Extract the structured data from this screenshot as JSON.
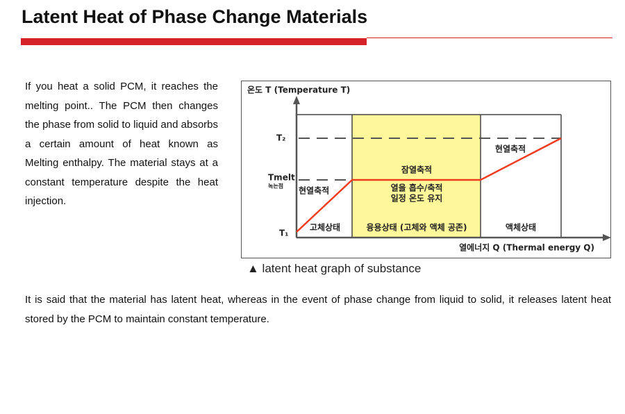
{
  "header": {
    "title": "Latent Heat of Phase Change Materials"
  },
  "intro": "If you heat a solid PCM, it reaches the melting point.. The PCM then changes the phase from solid to liquid and absorbs a certain amount of heat known as Melting enthalpy. The material stays at a constant temperature despite the heat injection.",
  "figure": {
    "y_axis_label": "온도 T (Temperature T)",
    "x_axis_label": "열에너지 Q (Thermal energy Q)",
    "t2": "T₂",
    "tmelt": "Tmelt",
    "tmelt_korean": "녹는점",
    "t1": "T₁",
    "solid_sensible": "현열축적",
    "latent": "잠열축적",
    "absorb": "열을 흡수/축적",
    "constant": "일정 온도 유지",
    "liquid_sensible": "현열축적",
    "solid_state": "고체상태",
    "melting_state": "융용상태 (고체와 액체 공존)",
    "liquid_state": "액체상태",
    "caption": "▲ latent heat graph of substance"
  },
  "conclusion": "It is said that the material has latent heat, whereas in the event of phase change from liquid to solid, it releases latent heat stored by the PCM to maintain constant temperature."
}
